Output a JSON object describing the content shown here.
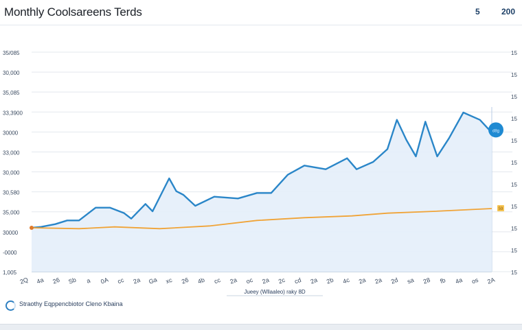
{
  "header": {
    "title": "Monthly Coolsareens Terds",
    "right_a": "5",
    "right_b": "200"
  },
  "footer": {
    "legend_text": "Straothy Eqppencbiotor Cleno Kbaina"
  },
  "colors": {
    "blue": "#2a86c8",
    "orange": "#f0a336",
    "fill": "#e4eef9",
    "grid": "#e3e8ee",
    "marker": "#1f8ad2"
  },
  "chart_data": {
    "type": "line",
    "title": "Monthly Coolsareens Terds",
    "xlabel": "Jueey (Wllaaleo) raky 8D",
    "ylabel": "",
    "y_tick_labels": [
      "35/085",
      "30,000",
      "35,085",
      "33,3900",
      "30000",
      "33,000",
      "30,000",
      "30,580",
      "35,000",
      "30000",
      "-0000",
      "1,005"
    ],
    "right_tick_labels": [
      "15",
      "15",
      "15",
      "15",
      "15",
      "15",
      "15",
      "15",
      "15",
      "15",
      "15"
    ],
    "x_tick_labels": [
      "2Q",
      "4a",
      "26",
      "Sb",
      "a",
      "0A",
      "cc",
      "2a",
      "Ga",
      "xc",
      "26",
      "4b",
      "cc",
      "2a",
      "oc",
      "2a",
      "2c",
      "cd",
      "2a",
      "2b",
      "4c",
      "2a",
      "2a",
      "2d",
      "sa",
      "28",
      "fb",
      "4a",
      "os",
      "2A"
    ],
    "ylim": [
      0,
      12
    ],
    "grid": true,
    "series": [
      {
        "color": "#2a86c8",
        "filled": true,
        "values": [
          [
            0,
            2.4
          ],
          [
            0.4,
            2.45
          ],
          [
            1,
            2.6
          ],
          [
            1.5,
            2.8
          ],
          [
            2,
            2.8
          ],
          [
            2.7,
            3.5
          ],
          [
            3.3,
            3.5
          ],
          [
            3.9,
            3.2
          ],
          [
            4.2,
            2.9
          ],
          [
            4.8,
            3.7
          ],
          [
            5.1,
            3.3
          ],
          [
            5.8,
            5.1
          ],
          [
            6.1,
            4.4
          ],
          [
            6.4,
            4.2
          ],
          [
            6.9,
            3.6
          ],
          [
            7.7,
            4.1
          ],
          [
            8.7,
            4.0
          ],
          [
            9.5,
            4.3
          ],
          [
            10.1,
            4.3
          ],
          [
            10.8,
            5.3
          ],
          [
            11.5,
            5.8
          ],
          [
            12.4,
            5.6
          ],
          [
            13.3,
            6.2
          ],
          [
            13.7,
            5.6
          ],
          [
            14.4,
            6.0
          ],
          [
            15.0,
            6.7
          ],
          [
            15.4,
            8.3
          ],
          [
            15.8,
            7.2
          ],
          [
            16.2,
            6.3
          ],
          [
            16.6,
            8.2
          ],
          [
            17.1,
            6.3
          ],
          [
            17.6,
            7.3
          ],
          [
            18.2,
            8.7
          ],
          [
            18.9,
            8.3
          ],
          [
            19.4,
            7.6
          ]
        ],
        "end_label": "d8g"
      },
      {
        "color": "#f0a336",
        "filled": false,
        "values": [
          [
            0,
            2.4
          ],
          [
            2,
            2.35
          ],
          [
            3.5,
            2.45
          ],
          [
            5.4,
            2.35
          ],
          [
            7.5,
            2.5
          ],
          [
            9.5,
            2.8
          ],
          [
            11.5,
            2.95
          ],
          [
            13.5,
            3.05
          ],
          [
            15,
            3.2
          ],
          [
            17,
            3.3
          ],
          [
            19.4,
            3.45
          ]
        ],
        "end_label": "59"
      }
    ],
    "annotations": [
      "d8g",
      "59"
    ]
  }
}
